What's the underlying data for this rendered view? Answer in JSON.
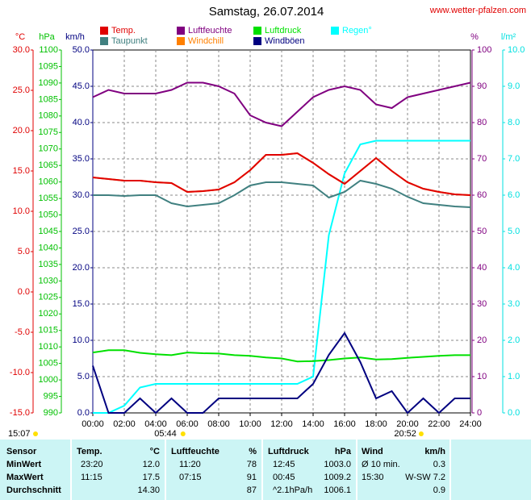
{
  "chart_data": {
    "type": "line",
    "title": "Samstag, 26.07.2014",
    "source": "www.wetter-pfalzen.com",
    "grid": true,
    "grid_axis": 2,
    "x": [
      0,
      1,
      2,
      3,
      4,
      5,
      6,
      7,
      8,
      9,
      10,
      11,
      12,
      13,
      14,
      15,
      16,
      17,
      18,
      19,
      20,
      21,
      22,
      23,
      24
    ],
    "xlim": [
      0,
      24
    ],
    "xticks": [
      {
        "value": 0,
        "label": "00:00"
      },
      {
        "value": 2,
        "label": "02:00"
      },
      {
        "value": 4,
        "label": "04:00"
      },
      {
        "value": 6,
        "label": "06:00"
      },
      {
        "value": 8,
        "label": "08:00"
      },
      {
        "value": 10,
        "label": "10:00"
      },
      {
        "value": 12,
        "label": "12:00"
      },
      {
        "value": 14,
        "label": "14:00"
      },
      {
        "value": 16,
        "label": "16:00"
      },
      {
        "value": 18,
        "label": "18:00"
      },
      {
        "value": 20,
        "label": "20:00"
      },
      {
        "value": 22,
        "label": "22:00"
      },
      {
        "value": 24,
        "label": "24:00"
      }
    ],
    "axes": [
      {
        "label": "°C",
        "color": "#e00000",
        "ylim": [
          -15,
          30
        ],
        "yticks": [
          {
            "value": -15,
            "label": "-15.0"
          },
          {
            "value": -10,
            "label": "-10.0"
          },
          {
            "value": -5,
            "label": "-5.0"
          },
          {
            "value": 0,
            "label": "0.0"
          },
          {
            "value": 5,
            "label": "5.0"
          },
          {
            "value": 10,
            "label": "10.0"
          },
          {
            "value": 15,
            "label": "15.0"
          },
          {
            "value": 20,
            "label": "20.0"
          },
          {
            "value": 25,
            "label": "25.0"
          },
          {
            "value": 30,
            "label": "30.0"
          }
        ]
      },
      {
        "label": "hPa",
        "color": "#00c000",
        "ylim": [
          990,
          1100
        ],
        "yticks": [
          990,
          995,
          1000,
          1005,
          1010,
          1015,
          1020,
          1025,
          1030,
          1035,
          1040,
          1045,
          1050,
          1055,
          1060,
          1065,
          1070,
          1075,
          1080,
          1085,
          1090,
          1095,
          1100
        ]
      },
      {
        "label": "km/h",
        "color": "#000080",
        "ylim": [
          0,
          50
        ],
        "yticks": [
          {
            "value": 0,
            "label": "0.0"
          },
          {
            "value": 5,
            "label": "5.0"
          },
          {
            "value": 10,
            "label": "10.0"
          },
          {
            "value": 15,
            "label": "15.0"
          },
          {
            "value": 20,
            "label": "20.0"
          },
          {
            "value": 25,
            "label": "25.0"
          },
          {
            "value": 30,
            "label": "30.0"
          },
          {
            "value": 35,
            "label": "35.0"
          },
          {
            "value": 40,
            "label": "40.0"
          },
          {
            "value": 45,
            "label": "45.0"
          },
          {
            "value": 50,
            "label": "50.0"
          }
        ]
      },
      {
        "label": "%",
        "color": "#800080",
        "ylim": [
          0,
          100
        ],
        "yticks": [
          0,
          10,
          20,
          30,
          40,
          50,
          60,
          70,
          80,
          90,
          100
        ]
      },
      {
        "label": "l/m²",
        "color": "#00e0e0",
        "ylim": [
          0,
          10
        ],
        "yticks": [
          {
            "value": 0,
            "label": "0.0"
          },
          {
            "value": 1,
            "label": "1.0"
          },
          {
            "value": 2,
            "label": "2.0"
          },
          {
            "value": 3,
            "label": "3.0"
          },
          {
            "value": 4,
            "label": "4.0"
          },
          {
            "value": 5,
            "label": "5.0"
          },
          {
            "value": 6,
            "label": "6.0"
          },
          {
            "value": 7,
            "label": "7.0"
          },
          {
            "value": 8,
            "label": "8.0"
          },
          {
            "value": 9,
            "label": "9.0"
          },
          {
            "value": 10,
            "label": "10.0"
          }
        ]
      }
    ],
    "series": [
      {
        "name": "Temp.",
        "color": "#e00000",
        "axis": 0,
        "values": [
          14.2,
          14.0,
          13.8,
          13.8,
          13.6,
          13.5,
          12.4,
          12.5,
          12.7,
          13.6,
          15.1,
          17.0,
          17.0,
          17.2,
          16.0,
          14.6,
          13.4,
          15.0,
          16.6,
          15.0,
          13.6,
          12.8,
          12.4,
          12.1,
          12.0
        ]
      },
      {
        "name": "Taupunkt",
        "color": "#408080",
        "axis": 0,
        "values": [
          12.0,
          12.0,
          11.9,
          12.0,
          12.0,
          11.0,
          10.6,
          10.8,
          11.0,
          12.0,
          13.2,
          13.6,
          13.6,
          13.4,
          13.2,
          11.7,
          12.4,
          13.8,
          13.4,
          12.8,
          11.8,
          11.0,
          10.8,
          10.6,
          10.5
        ]
      },
      {
        "name": "Luftfeuchte",
        "color": "#800080",
        "axis": 3,
        "values": [
          87,
          89,
          88,
          88,
          88,
          89,
          91,
          91,
          90,
          88,
          82,
          80,
          79,
          83,
          87,
          89,
          90,
          89,
          85,
          84,
          87,
          88,
          89,
          90,
          91
        ]
      },
      {
        "name": "Windchill",
        "color": "#ff8000",
        "axis": 0,
        "values": [
          14.2,
          14.0,
          13.8,
          13.8,
          13.6,
          13.5,
          12.4,
          12.5,
          12.7,
          13.6,
          15.1,
          17.0,
          17.0,
          17.2,
          16.0,
          14.6,
          13.4,
          15.0,
          16.6,
          15.0,
          13.6,
          12.8,
          12.4,
          12.1,
          12.0
        ]
      },
      {
        "name": "Luftdruck",
        "color": "#00e000",
        "axis": 1,
        "values": [
          1008.3,
          1009.0,
          1009.0,
          1008.2,
          1007.8,
          1007.5,
          1008.3,
          1008.1,
          1008.0,
          1007.5,
          1007.3,
          1006.8,
          1006.5,
          1005.6,
          1005.7,
          1006.0,
          1006.5,
          1006.8,
          1006.2,
          1006.3,
          1006.7,
          1007.0,
          1007.3,
          1007.5,
          1007.5
        ]
      },
      {
        "name": "Windböen",
        "color": "#000080",
        "axis": 2,
        "values": [
          6.5,
          0,
          0,
          2,
          0,
          2,
          0,
          0,
          2,
          2,
          2,
          2,
          2,
          2,
          4,
          8,
          11,
          7,
          2,
          3,
          0,
          2,
          0,
          2,
          2
        ]
      },
      {
        "name": "Regen°",
        "color": "#00ffff",
        "axis": 4,
        "values": [
          0,
          0,
          0.2,
          0.7,
          0.8,
          0.8,
          0.8,
          0.8,
          0.8,
          0.8,
          0.8,
          0.8,
          0.8,
          0.8,
          1.0,
          4.9,
          6.6,
          7.4,
          7.5,
          7.5,
          7.5,
          7.5,
          7.5,
          7.5,
          7.5
        ]
      }
    ],
    "time": "15:07",
    "sunrise": {
      "value": 5.733,
      "label": "05:44"
    },
    "sunset": {
      "value": 20.867,
      "label": "20:52"
    }
  },
  "table": {
    "header": [
      "Sensor",
      "Temp.",
      "°C",
      "Luftfeuchte",
      "%",
      "Luftdruck",
      "hPa",
      "Wind",
      "km/h"
    ],
    "rows": [
      [
        "MinWert",
        "23:20",
        "12.0",
        "11:20",
        "78",
        "12:45",
        "1003.0",
        "Ø 10 min.",
        "0.3"
      ],
      [
        "MaxWert",
        "11:15",
        "17.5",
        "07:15",
        "91",
        "00:45",
        "1009.2",
        "15:30",
        "W-SW 7.2"
      ],
      [
        "Durchschnitt",
        null,
        "14.30",
        null,
        "87",
        "^2.1hPa/h",
        "1006.1",
        null,
        "0.9"
      ]
    ]
  }
}
